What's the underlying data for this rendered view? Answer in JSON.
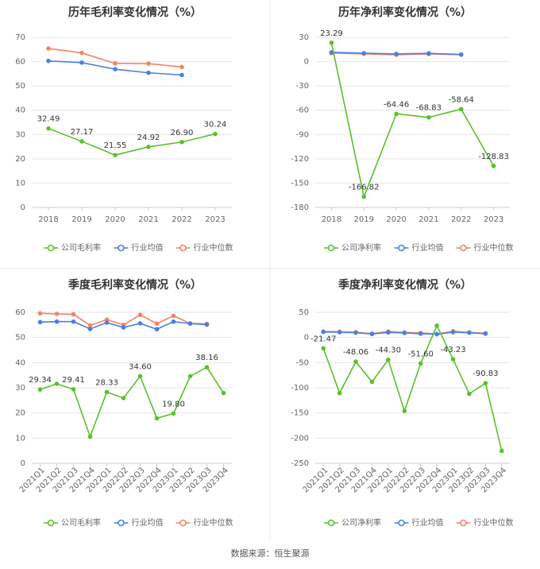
{
  "source": "数据来源：恒生聚源",
  "colors": {
    "company": "#5ac12a",
    "industry_avg": "#4a7fe6",
    "industry_median": "#f48463"
  },
  "chart_data": [
    {
      "type": "line",
      "title": "历年毛利率变化情况（%）",
      "x": [
        "2018",
        "2019",
        "2020",
        "2021",
        "2022",
        "2023"
      ],
      "ylim": [
        0,
        70
      ],
      "yticks": [
        0,
        10,
        20,
        30,
        40,
        50,
        60,
        70
      ],
      "grid": true,
      "legend_position": "bottom",
      "series": [
        {
          "name": "公司毛利率",
          "values": [
            32.49,
            27.17,
            21.55,
            24.92,
            26.9,
            30.24
          ],
          "labels": [
            "32.49",
            "27.17",
            "21.55",
            "24.92",
            "26.90",
            "30.24"
          ]
        },
        {
          "name": "行业均值",
          "values": [
            60.3,
            59.6,
            56.9,
            55.4,
            54.5,
            null
          ]
        },
        {
          "name": "行业中位数",
          "values": [
            65.4,
            63.6,
            59.3,
            59.2,
            57.8,
            null
          ]
        }
      ]
    },
    {
      "type": "line",
      "title": "历年净利率变化情况（%）",
      "x": [
        "2018",
        "2019",
        "2020",
        "2021",
        "2022",
        "2023"
      ],
      "ylim": [
        -180,
        30
      ],
      "yticks": [
        30,
        0,
        -30,
        -60,
        -90,
        -120,
        -150,
        -180
      ],
      "grid": true,
      "legend_position": "bottom",
      "series": [
        {
          "name": "公司净利率",
          "values": [
            23.29,
            -166.82,
            -64.46,
            -68.83,
            -58.64,
            -128.83
          ],
          "labels": [
            "23.29",
            "-166.82",
            "-64.46",
            "-68.83",
            "-58.64",
            "-128.83"
          ]
        },
        {
          "name": "行业均值",
          "values": [
            11.5,
            10.5,
            9.5,
            10.2,
            8.8,
            null
          ]
        },
        {
          "name": "行业中位数",
          "values": [
            10.5,
            9.6,
            8.5,
            9.4,
            8.6,
            null
          ]
        }
      ]
    },
    {
      "type": "line",
      "title": "季度毛利率变化情况（%）",
      "x": [
        "2021Q1",
        "2021Q2",
        "2021Q3",
        "2021Q4",
        "2022Q1",
        "2022Q2",
        "2022Q3",
        "2022Q4",
        "2023Q1",
        "2023Q2",
        "2023Q3",
        "2023Q4"
      ],
      "ylim": [
        0,
        60
      ],
      "yticks": [
        0,
        10,
        20,
        30,
        40,
        50,
        60
      ],
      "grid": true,
      "legend_position": "bottom",
      "series": [
        {
          "name": "公司毛利率",
          "values": [
            29.34,
            31.6,
            29.41,
            10.6,
            28.33,
            25.9,
            34.6,
            17.9,
            19.8,
            34.6,
            38.16,
            27.9
          ],
          "labels": [
            "29.34",
            null,
            "29.41",
            null,
            "28.33",
            null,
            "34.60",
            null,
            "19.80",
            null,
            "38.16",
            null
          ]
        },
        {
          "name": "行业均值",
          "values": [
            56.1,
            56.3,
            56.3,
            53.4,
            55.9,
            54.0,
            55.6,
            53.3,
            56.3,
            55.5,
            55.1,
            null
          ]
        },
        {
          "name": "行业中位数",
          "values": [
            59.6,
            59.4,
            59.2,
            54.8,
            57.1,
            55.0,
            59.0,
            55.5,
            58.6,
            55.6,
            55.4,
            null
          ]
        }
      ]
    },
    {
      "type": "line",
      "title": "季度净利率变化情况（%）",
      "x": [
        "2021Q1",
        "2021Q2",
        "2021Q3",
        "2021Q4",
        "2022Q1",
        "2022Q2",
        "2022Q3",
        "2022Q4",
        "2023Q1",
        "2023Q2",
        "2023Q3",
        "2023Q4"
      ],
      "ylim": [
        -250,
        50
      ],
      "yticks": [
        50,
        0,
        -50,
        -100,
        -150,
        -200,
        -250
      ],
      "grid": true,
      "legend_position": "bottom",
      "series": [
        {
          "name": "公司净利率",
          "values": [
            -21.47,
            -110.5,
            -48.06,
            -88.0,
            -44.3,
            -146.0,
            -51.6,
            23.5,
            -43.23,
            -112.0,
            -90.83,
            -225.5
          ],
          "labels": [
            "-21.47",
            null,
            "-48.06",
            null,
            "-44.30",
            null,
            "-51.60",
            null,
            "-43.23",
            null,
            "-90.83",
            null
          ]
        },
        {
          "name": "行业均值",
          "values": [
            11.0,
            10.5,
            9.5,
            7.0,
            10.0,
            9.0,
            7.5,
            6.5,
            10.5,
            9.5,
            7.5,
            null
          ]
        },
        {
          "name": "行业中位数",
          "values": [
            12.0,
            11.5,
            10.5,
            7.5,
            12.0,
            10.0,
            9.0,
            7.0,
            12.5,
            10.0,
            8.5,
            null
          ]
        }
      ]
    }
  ]
}
